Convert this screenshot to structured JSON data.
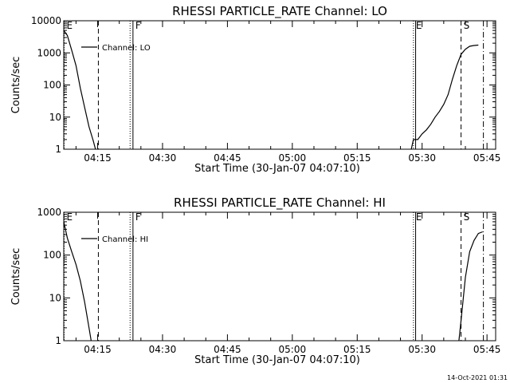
{
  "footer": {
    "timestamp": "14-Oct-2021 01:31"
  },
  "chart_data": [
    {
      "type": "line",
      "title": "RHESSI PARTICLE_RATE Channel: LO",
      "xlabel": "Start Time (30-Jan-07 04:07:10)",
      "ylabel": "Counts/sec",
      "yscale": "log",
      "xlim": [
        "04:07:10",
        "05:47:00"
      ],
      "ylim": [
        1,
        10000
      ],
      "xticks": [
        "04:15",
        "04:30",
        "04:45",
        "05:00",
        "05:15",
        "05:30",
        "05:45"
      ],
      "yticks": [
        "1",
        "10",
        "100",
        "1000",
        "10000"
      ],
      "legend": "top-left",
      "grid": false,
      "series": [
        {
          "name": "Channel: LO",
          "x": [
            "04:07:10",
            "04:08:00",
            "04:09:00",
            "04:10:00",
            "04:11:00",
            "04:12:00",
            "04:13:00",
            "04:14:00",
            "04:14:30",
            "05:27:30",
            "05:28:00",
            "05:29:00",
            "05:30:00",
            "05:31:00",
            "05:32:00",
            "05:33:00",
            "05:34:00",
            "05:35:00",
            "05:36:00",
            "05:37:00",
            "05:38:00",
            "05:39:00",
            "05:40:00",
            "05:41:00",
            "05:42:00",
            "05:43:00"
          ],
          "y": [
            5000,
            3500,
            1200,
            400,
            80,
            20,
            5,
            1.8,
            1,
            1,
            2,
            2,
            3,
            4,
            6,
            10,
            15,
            25,
            50,
            150,
            400,
            900,
            1300,
            1600,
            1700,
            1750
          ]
        }
      ],
      "markers": [
        {
          "label": "E",
          "time": "04:07:15",
          "style": "dotted"
        },
        {
          "label": "",
          "time": "04:15:10",
          "style": "dashed"
        },
        {
          "label": "",
          "time": "04:22:30",
          "style": "dotted"
        },
        {
          "label": "F",
          "time": "04:23:10",
          "style": "solid"
        },
        {
          "label": "E",
          "time": "05:28:00",
          "style": "dotted"
        },
        {
          "label": "",
          "time": "05:28:30",
          "style": "solid"
        },
        {
          "label": "S",
          "time": "05:39:00",
          "style": "dashed"
        },
        {
          "label": "",
          "time": "05:44:10",
          "style": "dashdot"
        }
      ]
    },
    {
      "type": "line",
      "title": "RHESSI PARTICLE_RATE Channel: HI",
      "xlabel": "Start Time (30-Jan-07 04:07:10)",
      "ylabel": "Counts/sec",
      "yscale": "log",
      "xlim": [
        "04:07:10",
        "05:47:00"
      ],
      "ylim": [
        1,
        1000
      ],
      "xticks": [
        "04:15",
        "04:30",
        "04:45",
        "05:00",
        "05:15",
        "05:30",
        "05:45"
      ],
      "yticks": [
        "1",
        "10",
        "100",
        "1000"
      ],
      "legend": "top-left",
      "grid": false,
      "series": [
        {
          "name": "Channel: HI",
          "x": [
            "04:07:10",
            "04:08:00",
            "04:09:00",
            "04:10:00",
            "04:11:00",
            "04:12:00",
            "04:13:00",
            "04:13:30",
            "05:38:30",
            "05:39:00",
            "05:40:00",
            "05:41:00",
            "05:42:00",
            "05:43:00",
            "05:44:00"
          ],
          "y": [
            600,
            250,
            120,
            60,
            25,
            8,
            2,
            1,
            1,
            3,
            30,
            120,
            220,
            320,
            350
          ]
        }
      ],
      "markers": [
        {
          "label": "E",
          "time": "04:07:15",
          "style": "dotted"
        },
        {
          "label": "",
          "time": "04:15:10",
          "style": "dashed"
        },
        {
          "label": "",
          "time": "04:22:30",
          "style": "dotted"
        },
        {
          "label": "F",
          "time": "04:23:10",
          "style": "solid"
        },
        {
          "label": "E",
          "time": "05:28:00",
          "style": "dotted"
        },
        {
          "label": "",
          "time": "05:28:30",
          "style": "solid"
        },
        {
          "label": "S",
          "time": "05:39:00",
          "style": "dashed"
        },
        {
          "label": "",
          "time": "05:44:10",
          "style": "dashdot"
        }
      ]
    }
  ]
}
